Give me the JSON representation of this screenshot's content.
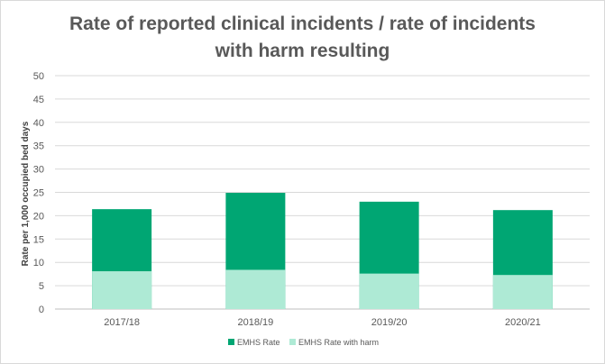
{
  "chart_data": {
    "type": "bar",
    "stacked": true,
    "title_line1": "Rate of reported clinical incidents / rate of incidents",
    "title_line2": "with harm resulting",
    "ylabel": "Rate per 1,000 occupied bed days",
    "xlabel": "",
    "categories": [
      "2017/18",
      "2018/19",
      "2019/20",
      "2020/21"
    ],
    "ylim": [
      0,
      50
    ],
    "yticks": [
      0,
      5,
      10,
      15,
      20,
      25,
      30,
      35,
      40,
      45,
      50
    ],
    "grid": true,
    "legend_position": "bottom",
    "series": [
      {
        "name": "EMHS Rate",
        "color": "#00a673",
        "values": [
          21.4,
          24.9,
          23.0,
          21.2
        ]
      },
      {
        "name": "EMHS Rate with harm",
        "color": "#aeead5",
        "values": [
          8.1,
          8.4,
          7.6,
          7.3
        ]
      }
    ]
  }
}
